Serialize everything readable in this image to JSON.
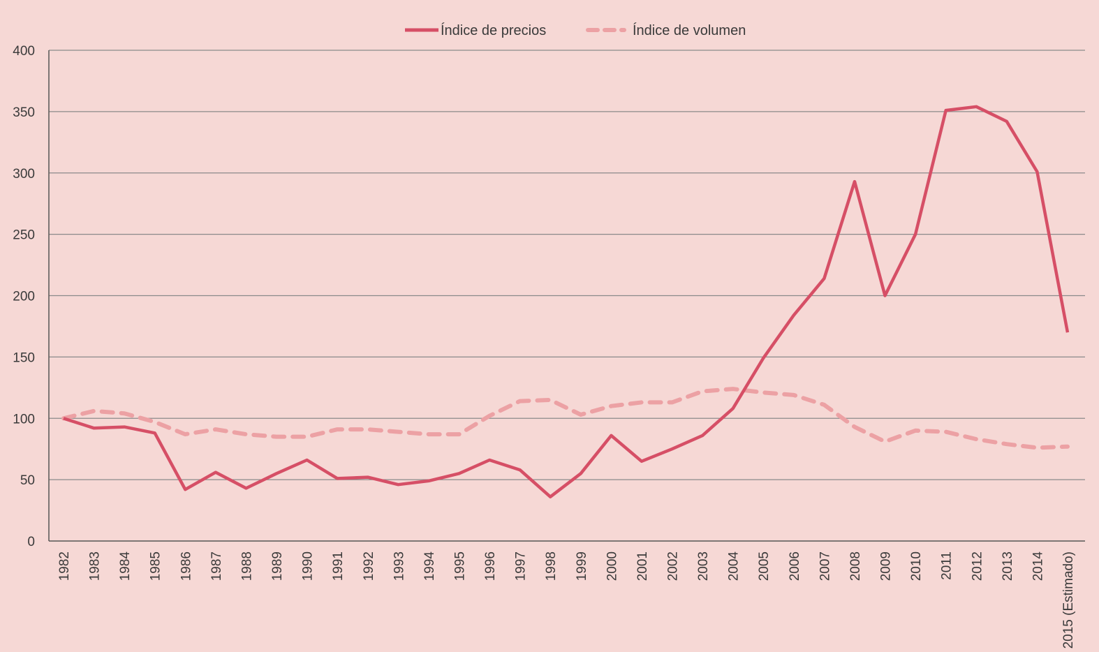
{
  "chart_data": {
    "type": "line",
    "title": "",
    "xlabel": "",
    "ylabel": "",
    "ylim": [
      0,
      400
    ],
    "yticks": [
      0,
      50,
      100,
      150,
      200,
      250,
      300,
      350,
      400
    ],
    "grid": true,
    "legend_position": "top-center",
    "categories": [
      "1982",
      "1983",
      "1984",
      "1985",
      "1986",
      "1987",
      "1988",
      "1989",
      "1990",
      "1991",
      "1992",
      "1993",
      "1994",
      "1995",
      "1996",
      "1997",
      "1998",
      "1999",
      "2000",
      "2001",
      "2002",
      "2003",
      "2004",
      "2005",
      "2006",
      "2007",
      "2008",
      "2009",
      "2010",
      "2011",
      "2012",
      "2013",
      "2014",
      "2015 (Estimado)"
    ],
    "series": [
      {
        "name": "Índice de precios",
        "style": "solid",
        "color": "#d64f66",
        "values": [
          100,
          92,
          93,
          88,
          42,
          56,
          43,
          55,
          66,
          51,
          52,
          46,
          49,
          55,
          66,
          58,
          36,
          55,
          86,
          65,
          75,
          86,
          108,
          149,
          184,
          214,
          293,
          200,
          250,
          351,
          354,
          342,
          301,
          170
        ]
      },
      {
        "name": "Índice de volumen",
        "style": "dashed",
        "color": "#eca1a4",
        "values": [
          100,
          106,
          104,
          97,
          87,
          91,
          87,
          85,
          85,
          91,
          91,
          89,
          87,
          87,
          102,
          114,
          115,
          103,
          110,
          113,
          113,
          122,
          124,
          121,
          119,
          111,
          93,
          81,
          90,
          89,
          83,
          79,
          76,
          77
        ]
      }
    ]
  }
}
